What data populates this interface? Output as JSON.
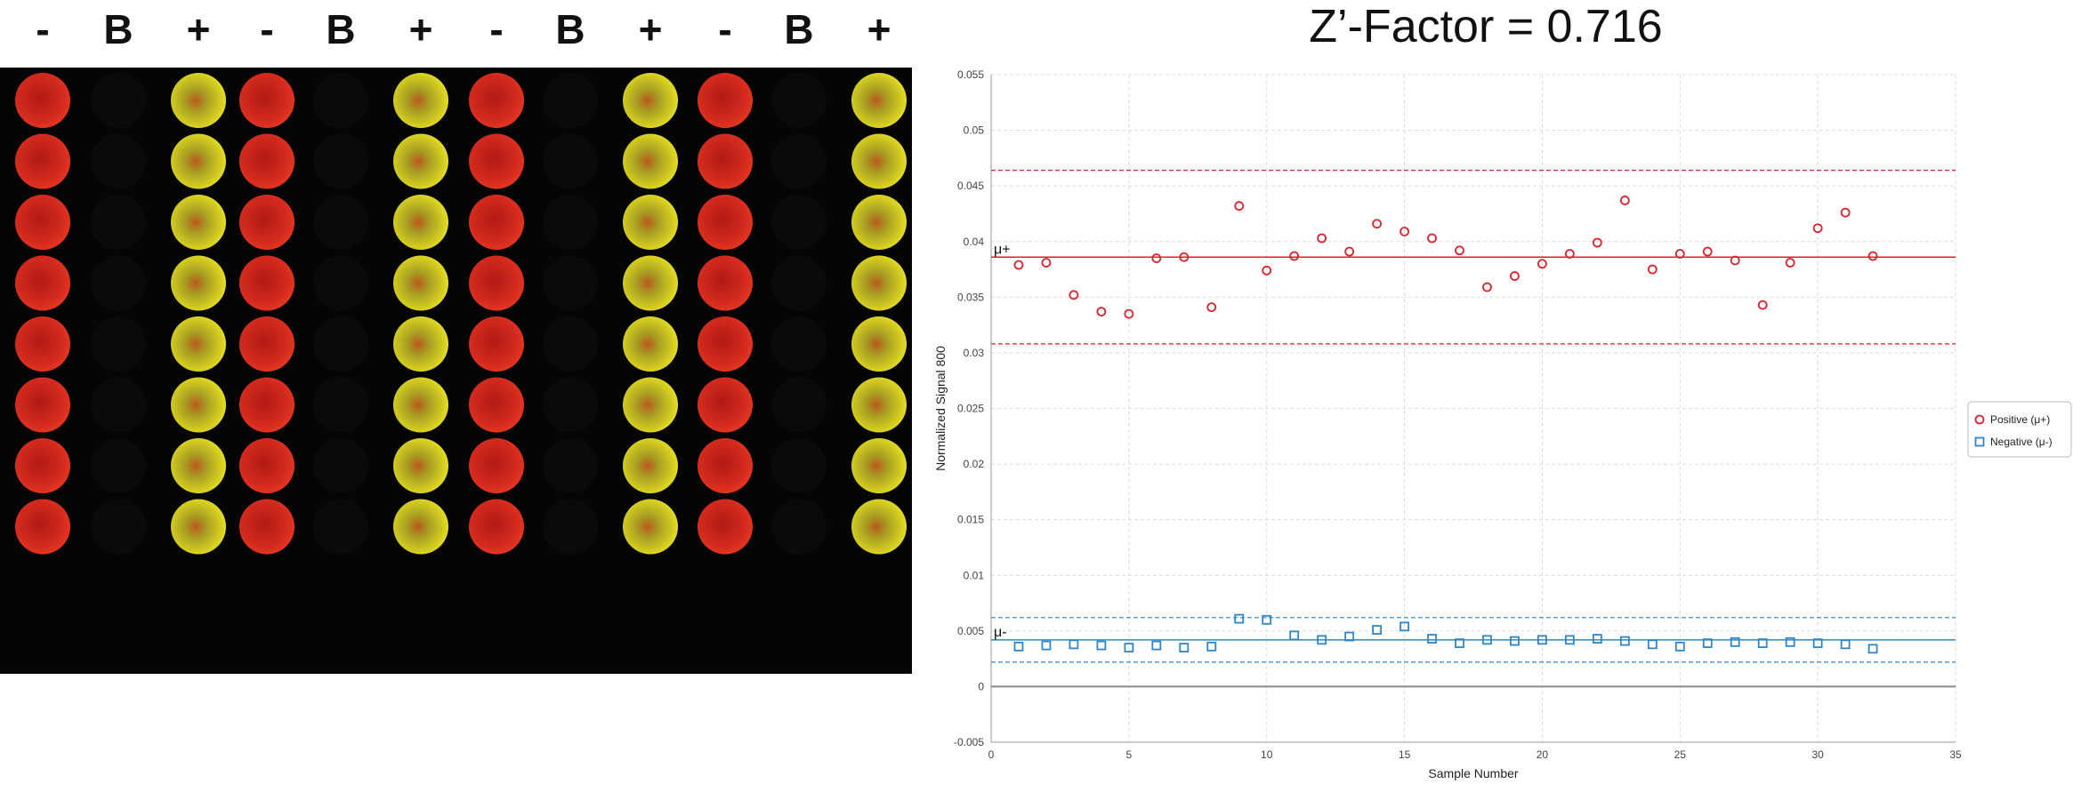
{
  "plate": {
    "columns": [
      "-",
      "B",
      "+",
      "-",
      "B",
      "+",
      "-",
      "B",
      "+",
      "-",
      "B",
      "+"
    ],
    "rows": 8
  },
  "colors": {
    "negative_well": "#d42a1e",
    "positive_well": "#d8d020",
    "positive_series": "#d9232e",
    "negative_series": "#2f86c8"
  },
  "chart_data": {
    "type": "scatter",
    "title": "Z’-Factor = 0.716",
    "xlabel": "Sample Number",
    "ylabel": "Normalized Signal 800",
    "xlim": [
      0,
      35
    ],
    "ylim": [
      -0.005,
      0.055
    ],
    "xticks": [
      0,
      5,
      10,
      15,
      20,
      25,
      30,
      35
    ],
    "yticks": [
      -0.005,
      0,
      0.005,
      0.01,
      0.015,
      0.02,
      0.025,
      0.03,
      0.035,
      0.04,
      0.045,
      0.05,
      0.055
    ],
    "ytick_labels": [
      "-0.005",
      "0",
      "0.005",
      "0.01",
      "0.015",
      "0.02",
      "0.025",
      "0.03",
      "0.035",
      "0.04",
      "0.045",
      "0.05",
      "0.055"
    ],
    "grid": true,
    "legend_position": "right",
    "series": [
      {
        "name": "Positive (μ+)",
        "marker": "circle",
        "x": [
          1,
          2,
          3,
          4,
          5,
          6,
          7,
          8,
          9,
          10,
          11,
          12,
          13,
          14,
          15,
          16,
          17,
          18,
          19,
          20,
          21,
          22,
          23,
          24,
          25,
          26,
          27,
          28,
          29,
          30,
          31,
          32
        ],
        "y": [
          0.0379,
          0.0381,
          0.0352,
          0.0337,
          0.0335,
          0.0385,
          0.0386,
          0.0341,
          0.0432,
          0.0374,
          0.0387,
          0.0403,
          0.0391,
          0.0416,
          0.0409,
          0.0403,
          0.0392,
          0.0359,
          0.0369,
          0.038,
          0.0389,
          0.0399,
          0.0437,
          0.0375,
          0.0389,
          0.0391,
          0.0383,
          0.0343,
          0.0381,
          0.0412,
          0.0426,
          0.0387
        ],
        "mean": 0.0386,
        "band": [
          0.0308,
          0.0464
        ]
      },
      {
        "name": "Negative (μ-)",
        "marker": "square",
        "x": [
          1,
          2,
          3,
          4,
          5,
          6,
          7,
          8,
          9,
          10,
          11,
          12,
          13,
          14,
          15,
          16,
          17,
          18,
          19,
          20,
          21,
          22,
          23,
          24,
          25,
          26,
          27,
          28,
          29,
          30,
          31,
          32
        ],
        "y": [
          0.0036,
          0.0037,
          0.0038,
          0.0037,
          0.0035,
          0.0037,
          0.0035,
          0.0036,
          0.0061,
          0.006,
          0.0046,
          0.0042,
          0.0045,
          0.0051,
          0.0054,
          0.0043,
          0.0039,
          0.0042,
          0.0041,
          0.0042,
          0.0042,
          0.0043,
          0.0041,
          0.0038,
          0.0036,
          0.0039,
          0.004,
          0.0039,
          0.004,
          0.0039,
          0.0038,
          0.0034
        ],
        "mean": 0.0042,
        "band": [
          0.0022,
          0.0062
        ]
      }
    ],
    "mean_labels": [
      "μ+",
      "μ-"
    ]
  }
}
